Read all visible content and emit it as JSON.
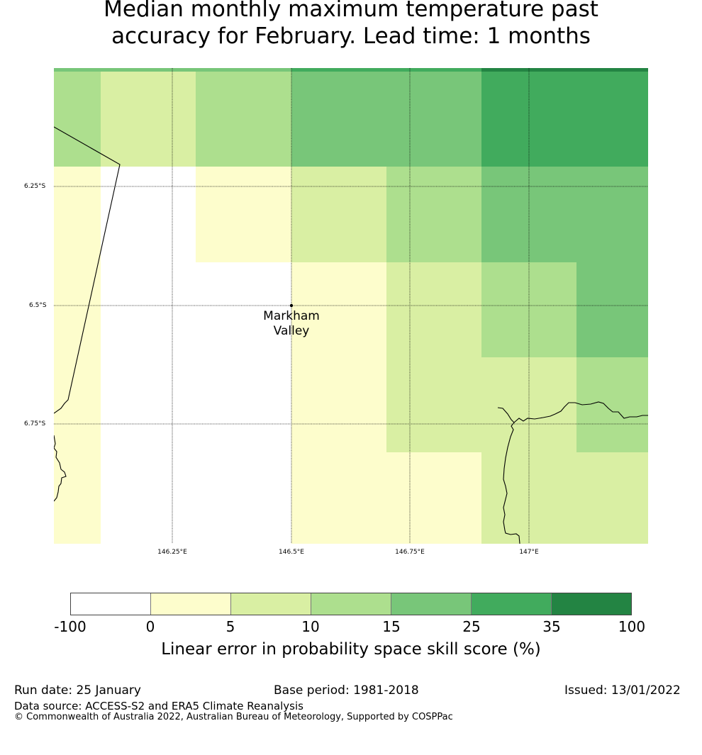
{
  "title_line1": "Median monthly maximum temperature past",
  "title_line2": "accuracy for February. Lead time: 1 months",
  "map": {
    "lat_labels": [
      "6.25°S",
      "6.5°S",
      "6.75°S"
    ],
    "lon_labels": [
      "146.25°E",
      "146.5°E",
      "146.75°E",
      "147°E"
    ],
    "place": {
      "name_line1": "Markham",
      "name_line2": "Valley",
      "lon": 146.5,
      "lat": -6.5
    }
  },
  "colorbar": {
    "colors": [
      "#ffffff",
      "#fdfdcc",
      "#d9efa3",
      "#addf8e",
      "#78c679",
      "#41ab5d",
      "#238443"
    ],
    "tick_labels": [
      "-100",
      "0",
      "5",
      "10",
      "15",
      "25",
      "35",
      "100"
    ],
    "label": "Linear error in probability space skill score (%)"
  },
  "footer": {
    "run_date": "Run date: 25 January",
    "base_period": "Base period: 1981-2018",
    "issued": "Issued: 13/01/2022",
    "data_source": "Data source: ACCESS-S2 and ERA5 Climate Reanalysis",
    "copyright": "© Commonwealth of Australia 2022, Australian Bureau of Meteorology, Supported by COSPPac"
  }
}
